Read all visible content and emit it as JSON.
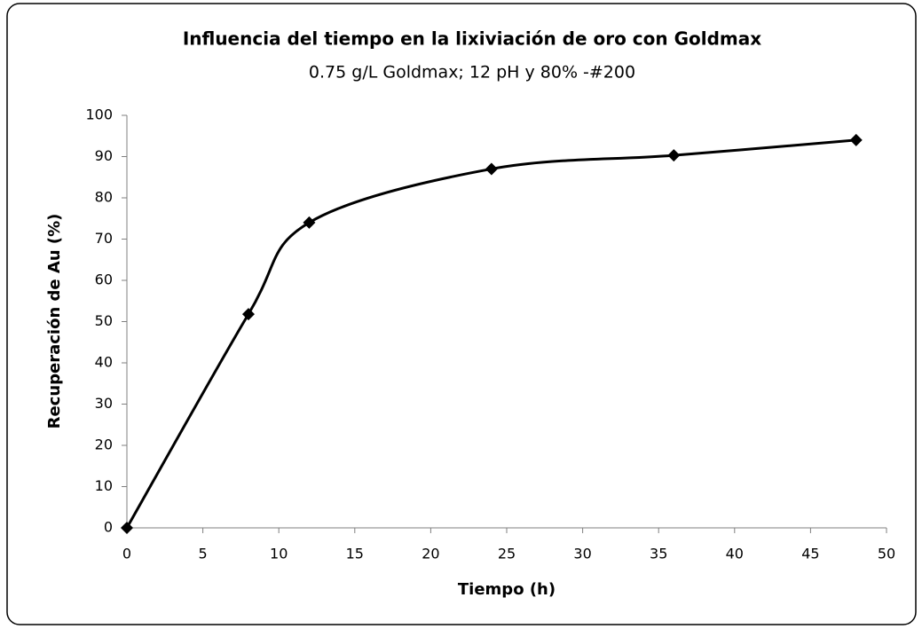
{
  "chart_data": {
    "type": "line",
    "title": "Influencia del tiempo en la lixiviación de oro con Goldmax",
    "subtitle": "0.75 g/L Goldmax; 12 pH y 80% -#200",
    "x_label": "Tiempo (h)",
    "y_label": "Recuperación de Au (%)",
    "x": [
      0,
      8,
      12,
      24,
      36,
      48
    ],
    "values": [
      0,
      51.8,
      74,
      87,
      90.3,
      94
    ],
    "color": "#000000",
    "smooth": true,
    "marker": "diamond",
    "xlim": [
      0,
      50
    ],
    "xticks": [
      0,
      5,
      10,
      15,
      20,
      25,
      30,
      35,
      40,
      45,
      50
    ],
    "ylim": [
      0,
      100
    ],
    "yticks": [
      0,
      10,
      20,
      30,
      40,
      50,
      60,
      70,
      80,
      90,
      100
    ],
    "grid": false
  }
}
